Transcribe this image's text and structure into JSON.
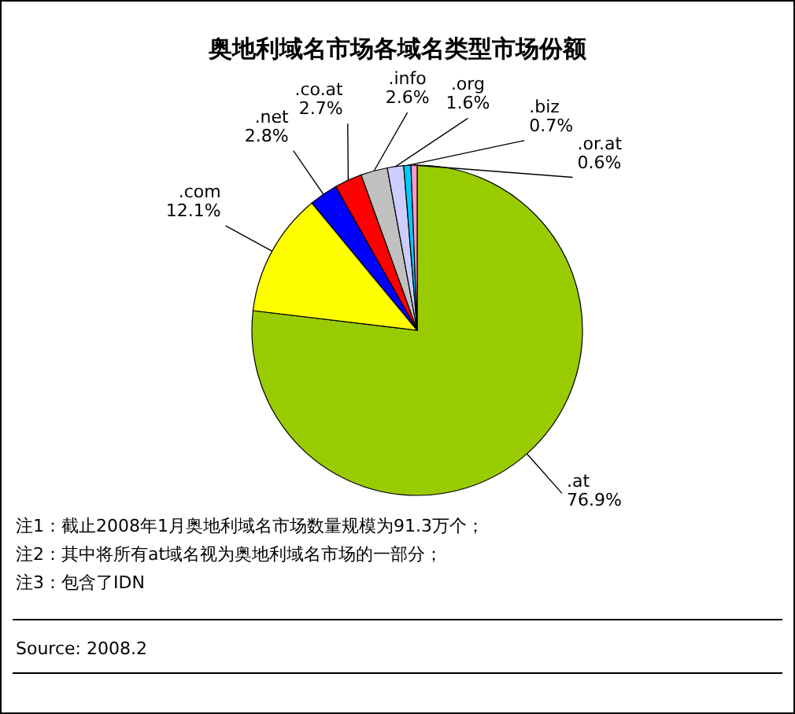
{
  "chart_data": {
    "type": "pie",
    "title": "奥地利域名市场各域名类型市场份额",
    "categories": [
      ".at",
      ".com",
      ".net",
      ".co.at",
      ".info",
      ".org",
      ".biz",
      ".or.at"
    ],
    "values": [
      76.9,
      12.1,
      2.8,
      2.7,
      2.6,
      1.6,
      0.7,
      0.6
    ],
    "colors": [
      "#99cc00",
      "#ffff00",
      "#0000ff",
      "#ff0000",
      "#c0c0c0",
      "#ccccff",
      "#00ccff",
      "#ff99cc"
    ],
    "value_labels": [
      "76.9%",
      "12.1%",
      "2.8%",
      "2.7%",
      "2.6%",
      "1.6%",
      "0.7%",
      "0.6%"
    ],
    "annotations": [
      "注1：截止2008年1月奥地利域名市场数量规模为91.3万个；",
      "注2：其中将所有at域名视为奥地利域名市场的一部分；",
      "注3：包含了IDN",
      "Source: 2008.2"
    ]
  }
}
